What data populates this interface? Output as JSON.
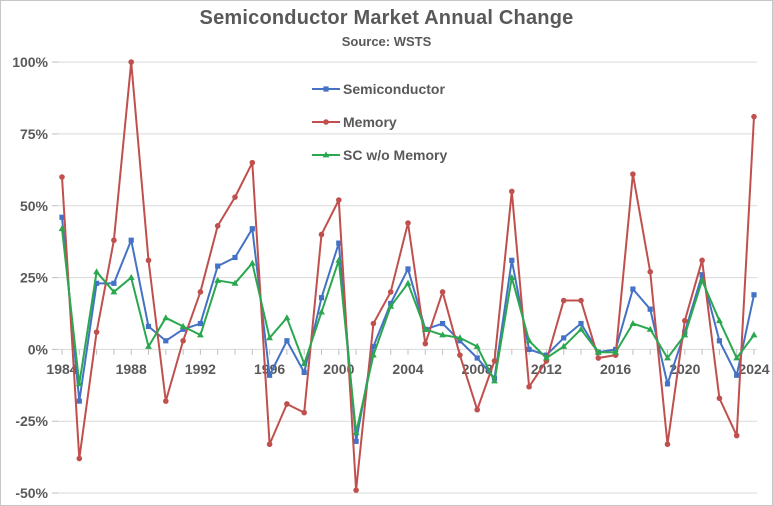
{
  "chart_data": {
    "type": "line",
    "title": "Semiconductor Market Annual Change",
    "subtitle": "Source: WSTS",
    "x": [
      1984,
      1985,
      1986,
      1987,
      1988,
      1989,
      1990,
      1991,
      1992,
      1993,
      1994,
      1995,
      1996,
      1997,
      1998,
      1999,
      2000,
      2001,
      2002,
      2003,
      2004,
      2005,
      2006,
      2007,
      2008,
      2009,
      2010,
      2011,
      2012,
      2013,
      2014,
      2015,
      2016,
      2017,
      2018,
      2019,
      2020,
      2021,
      2022,
      2023,
      2024
    ],
    "x_tick_labels": [
      "1984",
      "1988",
      "1992",
      "1996",
      "2000",
      "2004",
      "2008",
      "2012",
      "2016",
      "2020",
      "2024"
    ],
    "y_ticks": [
      {
        "value": 100,
        "label": "100%"
      },
      {
        "value": 75,
        "label": "75%"
      },
      {
        "value": 50,
        "label": "50%"
      },
      {
        "value": 25,
        "label": "25%"
      },
      {
        "value": 0,
        "label": "0%"
      },
      {
        "value": -25,
        "label": "-25%"
      },
      {
        "value": -50,
        "label": "-50%"
      }
    ],
    "ylim": [
      -50,
      100
    ],
    "y_unit": "%",
    "grid": "horizontal",
    "legend_position": "top-center",
    "series": [
      {
        "name": "Semiconductor",
        "color": "#4472C4",
        "marker": "square",
        "values": [
          46,
          -18,
          23,
          23,
          38,
          8,
          3,
          7,
          9,
          29,
          32,
          42,
          -9,
          3,
          -8,
          18,
          37,
          -32,
          1,
          16,
          28,
          7,
          9,
          3,
          -3,
          -10,
          31,
          0,
          -2,
          4,
          9,
          -1,
          0,
          21,
          14,
          -12,
          6,
          26,
          3,
          -9,
          19
        ]
      },
      {
        "name": "Memory",
        "color": "#C0504D",
        "marker": "circle",
        "values": [
          60,
          -38,
          6,
          38,
          100,
          31,
          -18,
          3,
          20,
          43,
          53,
          65,
          -33,
          -19,
          -22,
          40,
          52,
          -49,
          9,
          20,
          44,
          2,
          20,
          -2,
          -21,
          -4,
          55,
          -13,
          -4,
          17,
          17,
          -3,
          -2,
          61,
          27,
          -33,
          10,
          31,
          -17,
          -30,
          81
        ]
      },
      {
        "name": "SC w/o Memory",
        "color": "#2BA84F",
        "marker": "triangle",
        "values": [
          42,
          -12,
          27,
          20,
          25,
          1,
          11,
          8,
          5,
          24,
          23,
          30,
          4,
          11,
          -5,
          13,
          31,
          -29,
          -2,
          15,
          23,
          7,
          5,
          4,
          1,
          -11,
          25,
          3,
          -3,
          1,
          7,
          -1,
          -1,
          9,
          7,
          -3,
          5,
          24,
          10,
          -3,
          5
        ]
      }
    ],
    "colors": {
      "text": "#595959",
      "gridline": "#D9D9D9",
      "tick": "#BFBFBF",
      "background": "#FFFFFF",
      "border": "#C6C6C6"
    }
  }
}
